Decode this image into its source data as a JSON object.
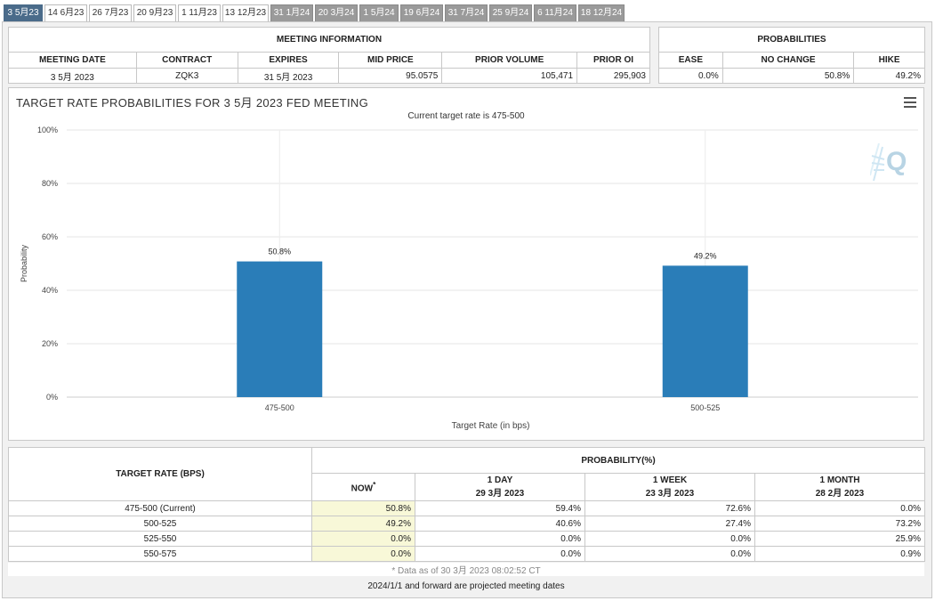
{
  "tabs": [
    {
      "label": "3 5月23",
      "state": "active"
    },
    {
      "label": "14 6月23",
      "state": "white"
    },
    {
      "label": "26 7月23",
      "state": "white"
    },
    {
      "label": "20 9月23",
      "state": "white"
    },
    {
      "label": "1 11月23",
      "state": "white"
    },
    {
      "label": "13 12月23",
      "state": "white"
    },
    {
      "label": "31 1月24",
      "state": "gray"
    },
    {
      "label": "20 3月24",
      "state": "gray"
    },
    {
      "label": "1 5月24",
      "state": "gray"
    },
    {
      "label": "19 6月24",
      "state": "gray"
    },
    {
      "label": "31 7月24",
      "state": "gray"
    },
    {
      "label": "25 9月24",
      "state": "gray"
    },
    {
      "label": "6 11月24",
      "state": "gray"
    },
    {
      "label": "18 12月24",
      "state": "gray"
    }
  ],
  "meeting_info": {
    "title": "MEETING INFORMATION",
    "headers": [
      "MEETING DATE",
      "CONTRACT",
      "EXPIRES",
      "MID PRICE",
      "PRIOR VOLUME",
      "PRIOR OI"
    ],
    "row": [
      "3 5月 2023",
      "ZQK3",
      "31 5月 2023",
      "95.0575",
      "105,471",
      "295,903"
    ]
  },
  "probabilities": {
    "title": "PROBABILITIES",
    "headers": [
      "EASE",
      "NO CHANGE",
      "HIKE"
    ],
    "row": [
      "0.0%",
      "50.8%",
      "49.2%"
    ]
  },
  "chart": {
    "title": "TARGET RATE PROBABILITIES FOR 3 5月 2023 FED MEETING",
    "subtitle": "Current target rate is 475-500",
    "menu_icon": "hamburger-menu-icon",
    "logo_icon": "q-logo-icon"
  },
  "chart_data": {
    "type": "bar",
    "categories": [
      "475-500",
      "500-525"
    ],
    "values": [
      50.8,
      49.2
    ],
    "data_labels": [
      "50.8%",
      "49.2%"
    ],
    "xlabel": "Target Rate (in bps)",
    "ylabel": "Probability",
    "ylim": [
      0,
      100
    ],
    "yticks": [
      "0%",
      "20%",
      "40%",
      "60%",
      "80%",
      "100%"
    ],
    "ytick_values": [
      0,
      20,
      40,
      60,
      80,
      100
    ],
    "bar_color": "#2a7db8",
    "grid": true
  },
  "prob_table": {
    "target_header": "TARGET RATE (BPS)",
    "prob_header": "PROBABILITY(%)",
    "col_now": "NOW",
    "col_now_mark": "*",
    "col_1day": "1 DAY",
    "col_1day_date": "29 3月 2023",
    "col_1week": "1 WEEK",
    "col_1week_date": "23 3月 2023",
    "col_1month": "1 MONTH",
    "col_1month_date": "28 2月 2023",
    "rows": [
      {
        "rate": "475-500 (Current)",
        "now": "50.8%",
        "day": "59.4%",
        "week": "72.6%",
        "month": "0.0%"
      },
      {
        "rate": "500-525",
        "now": "49.2%",
        "day": "40.6%",
        "week": "27.4%",
        "month": "73.2%"
      },
      {
        "rate": "525-550",
        "now": "0.0%",
        "day": "0.0%",
        "week": "0.0%",
        "month": "25.9%"
      },
      {
        "rate": "550-575",
        "now": "0.0%",
        "day": "0.0%",
        "week": "0.0%",
        "month": "0.9%"
      }
    ],
    "now_highlight": "#f8f8d8"
  },
  "footer": {
    "data_as_of": "* Data as of 30 3月 2023 08:02:52 CT",
    "projected_note": "2024/1/1 and forward are projected meeting dates"
  }
}
